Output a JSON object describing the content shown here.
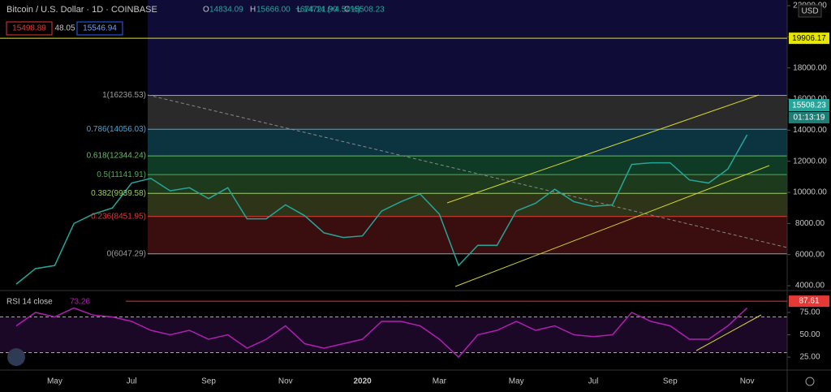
{
  "header": {
    "symbol": "Bitcoin / U.S. Dollar · 1D · COINBASE",
    "ohlc": [
      {
        "key": "O",
        "value": "14834.09"
      },
      {
        "key": "H",
        "value": "15666.00"
      },
      {
        "key": "L",
        "value": "14721.90"
      },
      {
        "key": "C",
        "value": "15508.23"
      }
    ],
    "change": "+674.14 (+4.54%)",
    "bid": "15498.89",
    "spread": "48.05",
    "ask": "15546.94",
    "currency": "USD",
    "last_price": "15508.23",
    "countdown": "01:13:19"
  },
  "chart_data": [
    {
      "type": "line",
      "color": "#26a69a",
      "categories": [
        null,
        null,
        "May",
        null,
        null,
        null,
        "Jul",
        null,
        null,
        null,
        "Sep",
        null,
        null,
        null,
        "Nov",
        null,
        null,
        null,
        "2020",
        null,
        null,
        null,
        "Mar",
        null,
        null,
        null,
        "May",
        null,
        null,
        null,
        "Jul",
        null,
        null,
        null,
        "Sep",
        null,
        null,
        null,
        "Nov"
      ],
      "values": [
        4100,
        5100,
        5300,
        8000,
        8600,
        9000,
        10600,
        10900,
        10100,
        10300,
        9600,
        10300,
        8300,
        8300,
        9200,
        8500,
        7400,
        7100,
        7200,
        8800,
        9400,
        9900,
        8600,
        5300,
        6600,
        6600,
        8800,
        9300,
        10200,
        9400,
        9100,
        9200,
        11800,
        11900,
        11900,
        10800,
        10600,
        11500,
        13700
      ],
      "ylim": [
        3690,
        22365
      ],
      "yticks": [
        {
          "value": 4000,
          "label": "4000.00"
        },
        {
          "value": 6000,
          "label": "6000.00"
        },
        {
          "value": 8000,
          "label": "8000.00"
        },
        {
          "value": 10000,
          "label": "10000.00"
        },
        {
          "value": 12000,
          "label": "12000.00"
        },
        {
          "value": 14000,
          "label": "14000.00"
        },
        {
          "value": 16000,
          "label": "16000.00"
        },
        {
          "value": 18000,
          "label": "18000.00"
        },
        {
          "value": 20000,
          "label": "20000.00"
        },
        {
          "value": 22000,
          "label": "22000.00"
        }
      ],
      "fib_levels": [
        {
          "value": 16236.53,
          "label": "1(16236.53)",
          "color": "#9e9e9e"
        },
        {
          "value": 14056.03,
          "label": "0.786(14056.03)",
          "color": "#4fa3d1"
        },
        {
          "value": 12344.24,
          "label": "0.618(12344.24)",
          "color": "#66bb6a"
        },
        {
          "value": 11141.91,
          "label": "0.5(11141.91)",
          "color": "#4caf50"
        },
        {
          "value": 9939.58,
          "label": "0.382(9939.58)",
          "color": "#9ccc65"
        },
        {
          "value": 8451.95,
          "label": "0.236(8451.95)",
          "color": "#e53935"
        },
        {
          "value": 6047.29,
          "label": "0(6047.29)",
          "color": "#9e9e9e"
        }
      ],
      "hline": {
        "value": 19906.17,
        "label": "19906.17",
        "color": "#e6e600"
      }
    },
    {
      "type": "line",
      "title": "RSI 14 close",
      "last_label": "73.26",
      "color": "#b11fb1",
      "values": [
        60,
        75,
        70,
        80,
        72,
        70,
        65,
        55,
        50,
        55,
        45,
        50,
        35,
        45,
        60,
        40,
        35,
        40,
        45,
        65,
        65,
        60,
        45,
        25,
        50,
        55,
        65,
        55,
        60,
        50,
        48,
        50,
        75,
        65,
        60,
        45,
        45,
        60,
        80
      ],
      "ylim": [
        11.4,
        97.7
      ],
      "yticks": [
        {
          "value": 25,
          "label": "25.00"
        },
        {
          "value": 50,
          "label": "50.00"
        },
        {
          "value": 75,
          "label": "75.00"
        }
      ],
      "bands": [
        30,
        70
      ],
      "hline": {
        "value": 87.61,
        "label": "87.61",
        "color": "#e53935"
      }
    }
  ]
}
